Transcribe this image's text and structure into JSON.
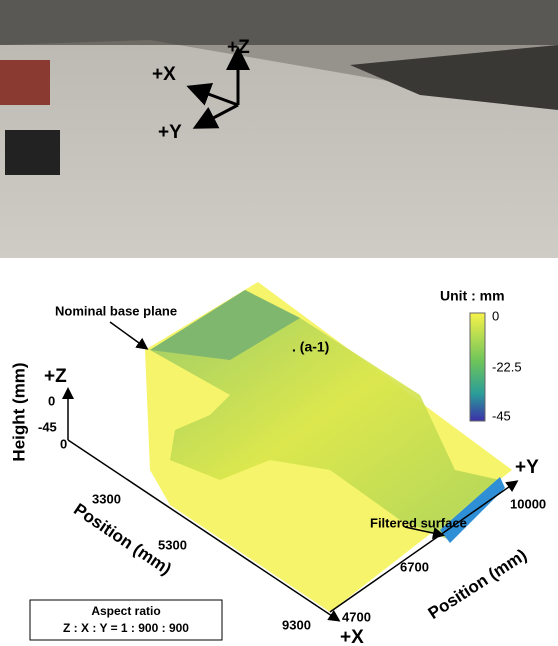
{
  "photo": {
    "axes": {
      "z": "+Z",
      "x": "+X",
      "y": "+Y"
    }
  },
  "plot": {
    "annotations": {
      "nominal": "Nominal base plane",
      "point": ". (a-1)",
      "filtered": "Filtered surface"
    },
    "colorbar": {
      "title": "Unit : mm",
      "ticks": [
        0,
        -22.5,
        -45
      ]
    },
    "z_axis": {
      "label": "Height (mm)",
      "sign": "+Z",
      "ticks": [
        0,
        -45
      ]
    },
    "x_axis": {
      "label": "Position (mm)",
      "sign": "+X",
      "ticks": [
        0,
        3300,
        5300,
        9300
      ]
    },
    "y_axis": {
      "label": "Position (mm)",
      "sign": "+Y",
      "ticks": [
        4700,
        6700,
        10000
      ]
    },
    "aspect": {
      "title": "Aspect ratio",
      "text": "Z : X : Y = 1 : 900 : 900"
    }
  }
}
